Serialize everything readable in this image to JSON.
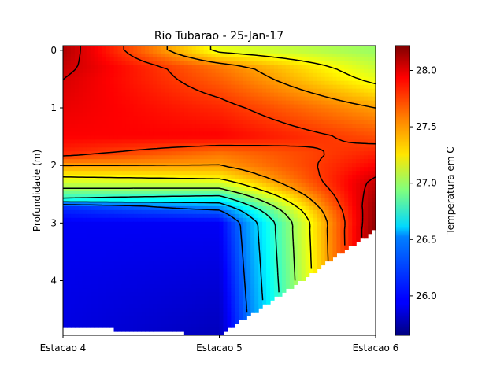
{
  "chart_data": {
    "type": "heatmap",
    "title": "Rio Tubarao - 25-Jan-17",
    "xlabel": "",
    "ylabel": "Profundidade (m)",
    "x_categories": [
      "Estacao 4",
      "Estacao 5",
      "Estacao 6"
    ],
    "x_positions": [
      0,
      1,
      2
    ],
    "ylim": [
      4.95,
      -0.08
    ],
    "y_ticks": [
      0,
      1,
      2,
      3,
      4
    ],
    "colorbar": {
      "label": "Temperatura em C",
      "range": [
        25.65,
        28.22
      ],
      "ticks": [
        26.0,
        26.5,
        27.0,
        27.5,
        28.0
      ],
      "colormap": "jet"
    },
    "profiles": [
      {
        "station": "Estacao 4",
        "max_depth": 4.8,
        "depths": [
          0,
          0.5,
          1.0,
          1.5,
          1.8,
          2.0,
          2.2,
          2.4,
          2.6,
          2.7,
          3.0,
          4.8
        ],
        "temps": [
          28.1,
          28.0,
          27.95,
          27.9,
          27.8,
          27.5,
          27.25,
          27.0,
          26.7,
          26.1,
          25.95,
          25.9
        ]
      },
      {
        "station": "Estacao 5",
        "max_depth": 4.95,
        "depths": [
          0,
          0.3,
          1.0,
          1.5,
          1.8,
          2.0,
          2.2,
          2.4,
          2.6,
          2.8,
          3.0,
          4.95
        ],
        "temps": [
          27.2,
          27.6,
          27.8,
          27.9,
          27.6,
          27.5,
          27.3,
          27.0,
          26.6,
          26.2,
          25.95,
          25.8
        ]
      },
      {
        "station": "Estacao 6",
        "max_depth": 3.12,
        "depths": [
          0,
          0.5,
          1.0,
          1.5,
          2.0,
          2.3,
          2.7,
          3.12
        ],
        "temps": [
          27.0,
          27.2,
          27.5,
          27.7,
          27.9,
          28.05,
          28.15,
          28.2
        ]
      }
    ],
    "contour_levels": [
      26.25,
      26.5,
      26.75,
      27.0,
      27.25,
      27.5,
      27.75,
      28.0
    ]
  }
}
